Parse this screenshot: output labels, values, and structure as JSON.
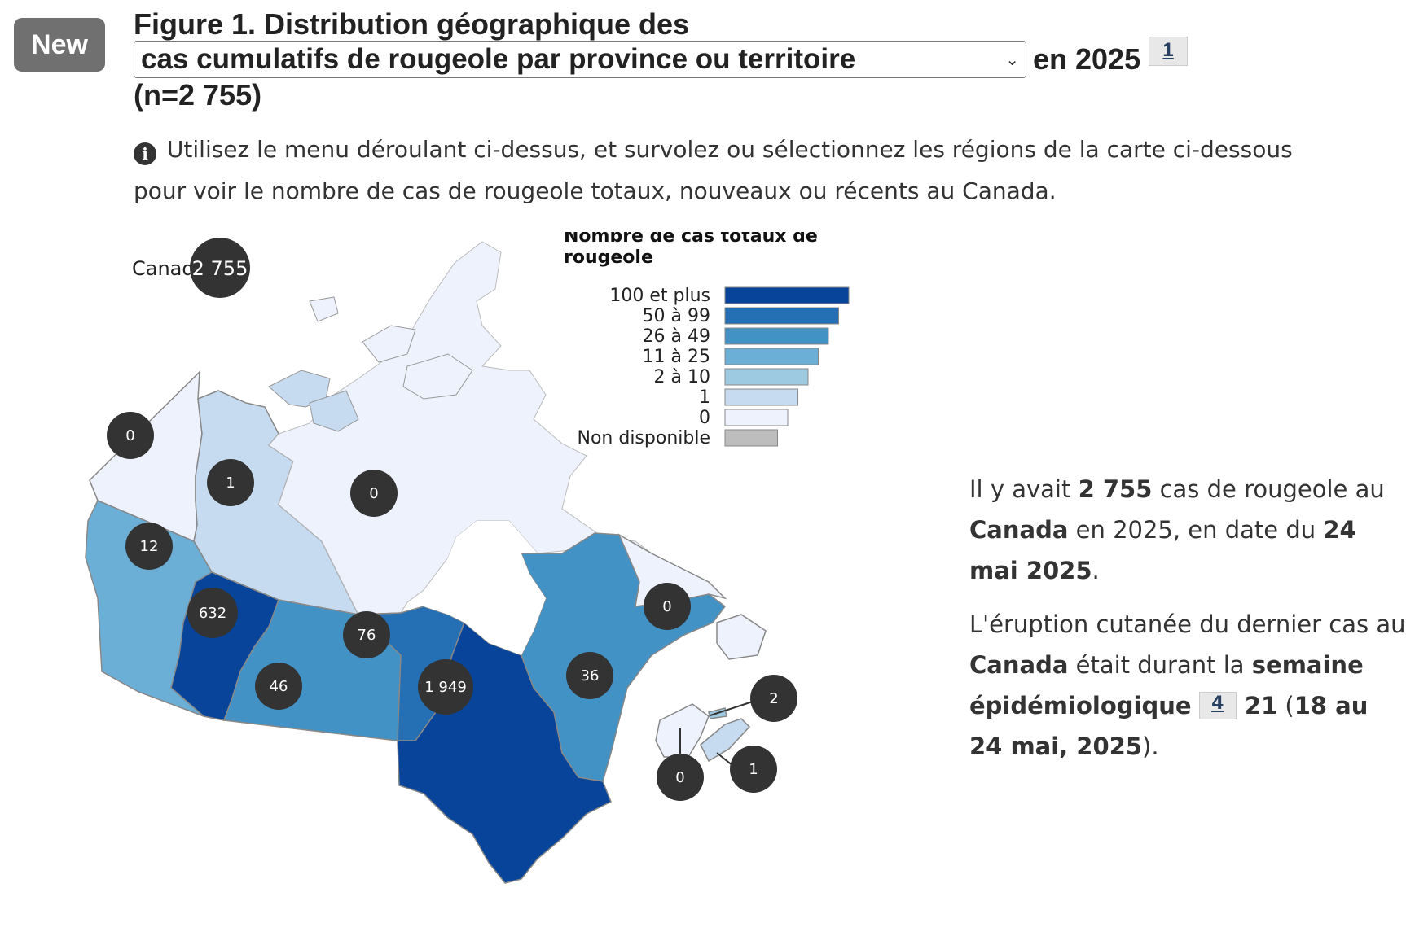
{
  "badge": "New",
  "title": {
    "line1": "Figure 1. Distribution géographique des",
    "select_value": "cas cumulatifs de rougeole par province ou territoire",
    "year_text": "en 2025",
    "footnote": "1",
    "n_text": "(n=2 755)"
  },
  "instructions": "Utilisez le menu déroulant ci-dessus, et survolez ou sélectionnez les régions de la carte ci-dessous pour voir le nombre de cas de rougeole totaux, nouveaux ou récents au Canada.",
  "canada_total": {
    "label": "Canada",
    "value": "2 755"
  },
  "legend": {
    "title": "Nombre de cas totaux de rougeole",
    "items": [
      {
        "label": "100 et plus",
        "color": "#08459a"
      },
      {
        "label": "50 à 99",
        "color": "#2570b5"
      },
      {
        "label": "26 à 49",
        "color": "#4292c6"
      },
      {
        "label": "11 à 25",
        "color": "#6baed6"
      },
      {
        "label": "2 à 10",
        "color": "#9ecae1"
      },
      {
        "label": "1",
        "color": "#c6dbef"
      },
      {
        "label": "0",
        "color": "#eef2fd"
      },
      {
        "label": "Non disponible",
        "color": "#bdbdbd"
      }
    ]
  },
  "regions": [
    {
      "id": "yt",
      "count": "0",
      "color": "#eef2fd"
    },
    {
      "id": "nt",
      "count": "1",
      "color": "#c6dbef"
    },
    {
      "id": "nu",
      "count": "0",
      "color": "#eef2fd"
    },
    {
      "id": "bc",
      "count": "12",
      "color": "#6baed6"
    },
    {
      "id": "ab",
      "count": "632",
      "color": "#08459a"
    },
    {
      "id": "sk",
      "count": "46",
      "color": "#4292c6"
    },
    {
      "id": "mb",
      "count": "76",
      "color": "#2570b5"
    },
    {
      "id": "on",
      "count": "1 949",
      "color": "#08459a"
    },
    {
      "id": "qc",
      "count": "36",
      "color": "#4292c6"
    },
    {
      "id": "nl",
      "count": "0",
      "color": "#eef2fd"
    },
    {
      "id": "pe",
      "count": "2",
      "color": "#9ecae1"
    },
    {
      "id": "ns",
      "count": "1",
      "color": "#c6dbef"
    },
    {
      "id": "nb",
      "count": "0",
      "color": "#eef2fd"
    }
  ],
  "summary": {
    "p1": {
      "a": "Il y avait ",
      "b": "2 755",
      "c": " cas de rougeole au ",
      "d": "Canada",
      "e": " en 2025, en date du ",
      "f": "24 mai 2025",
      "g": "."
    },
    "p2": {
      "a": "L'éruption cutanée du dernier cas au ",
      "b": "Canada",
      "c": " était durant la ",
      "d": "semaine épidémiologique",
      "fn": "4",
      "e": " 21",
      "f": " (",
      "g": "18 au 24 mai, 2025",
      "h": ")."
    }
  }
}
